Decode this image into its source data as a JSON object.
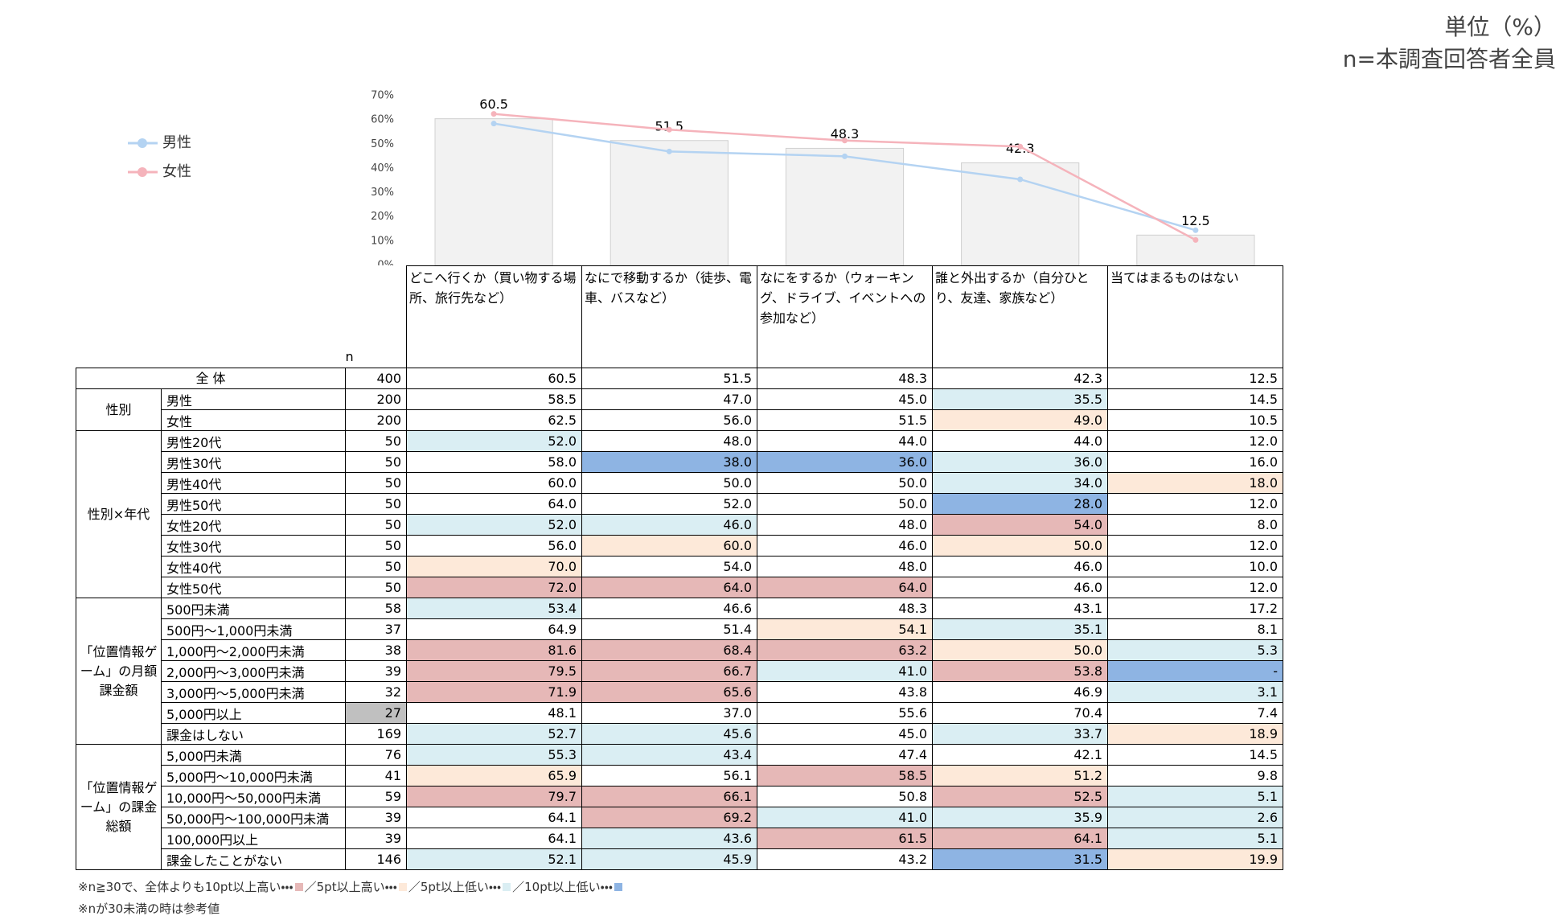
{
  "chart_data": {
    "type": "bar",
    "categories": [
      "どこへ行くか（買い物する場所、旅行先など）",
      "なにで移動するか（徒歩、電車、バスなど）",
      "なにをするか（ウォーキング、ドライブ、イベントへの参加など）",
      "誰と外出するか（自分ひとり、友達、家族など）",
      "当てはまるものはない"
    ],
    "values": [
      60.5,
      51.5,
      48.3,
      42.3,
      12.5
    ],
    "color": "#f2f2f2",
    "series": [
      {
        "name": "男性",
        "color": "#b4d3f2",
        "values": [
          58.5,
          47.0,
          45.0,
          35.5,
          14.5
        ]
      },
      {
        "name": "女性",
        "color": "#f5b3bb",
        "values": [
          62.5,
          56.0,
          51.5,
          49.0,
          10.5
        ]
      }
    ],
    "ylim": [
      0,
      70
    ],
    "yticks": [
      {
        "value": 0,
        "label": "0%"
      },
      {
        "value": 10,
        "label": "10%"
      },
      {
        "value": 20,
        "label": "20%"
      },
      {
        "value": 30,
        "label": "30%"
      },
      {
        "value": 40,
        "label": "40%"
      },
      {
        "value": 50,
        "label": "50%"
      },
      {
        "value": 60,
        "label": "60%"
      },
      {
        "value": 70,
        "label": "70%"
      }
    ],
    "grid": false,
    "legend": "left"
  },
  "header": {
    "unit": "単位（%）",
    "base": "n=本調査回答者全員"
  },
  "table": {
    "n_header": "n",
    "total": {
      "label": "全 体",
      "n": "400",
      "values": [
        "60.5",
        "51.5",
        "48.3",
        "42.3",
        "12.5"
      ]
    },
    "groups": [
      {
        "label": "性別",
        "rows": [
          {
            "label": "男性",
            "n": "200",
            "values": [
              "58.5",
              "47.0",
              "45.0",
              "35.5",
              "14.5"
            ],
            "fills": [
              null,
              null,
              null,
              "#daeef3",
              null
            ]
          },
          {
            "label": "女性",
            "n": "200",
            "values": [
              "62.5",
              "56.0",
              "51.5",
              "49.0",
              "10.5"
            ],
            "fills": [
              null,
              null,
              null,
              "#fde9d9",
              null
            ]
          }
        ]
      },
      {
        "label": "性別×年代",
        "rows": [
          {
            "label": "男性20代",
            "n": "50",
            "values": [
              "52.0",
              "48.0",
              "44.0",
              "44.0",
              "12.0"
            ],
            "fills": [
              "#daeef3",
              null,
              null,
              null,
              null
            ]
          },
          {
            "label": "男性30代",
            "n": "50",
            "values": [
              "58.0",
              "38.0",
              "36.0",
              "36.0",
              "16.0"
            ],
            "fills": [
              null,
              "#8eb4e3",
              "#8eb4e3",
              "#daeef3",
              null
            ]
          },
          {
            "label": "男性40代",
            "n": "50",
            "values": [
              "60.0",
              "50.0",
              "50.0",
              "34.0",
              "18.0"
            ],
            "fills": [
              null,
              null,
              null,
              "#daeef3",
              "#fde9d9"
            ]
          },
          {
            "label": "男性50代",
            "n": "50",
            "values": [
              "64.0",
              "52.0",
              "50.0",
              "28.0",
              "12.0"
            ],
            "fills": [
              null,
              null,
              null,
              "#8eb4e3",
              null
            ]
          },
          {
            "label": "女性20代",
            "n": "50",
            "values": [
              "52.0",
              "46.0",
              "48.0",
              "54.0",
              "8.0"
            ],
            "fills": [
              "#daeef3",
              "#daeef3",
              null,
              "#e6b8b7",
              null
            ]
          },
          {
            "label": "女性30代",
            "n": "50",
            "values": [
              "56.0",
              "60.0",
              "46.0",
              "50.0",
              "12.0"
            ],
            "fills": [
              null,
              "#fde9d9",
              null,
              "#fde9d9",
              null
            ]
          },
          {
            "label": "女性40代",
            "n": "50",
            "values": [
              "70.0",
              "54.0",
              "48.0",
              "46.0",
              "10.0"
            ],
            "fills": [
              "#fde9d9",
              null,
              null,
              null,
              null
            ]
          },
          {
            "label": "女性50代",
            "n": "50",
            "values": [
              "72.0",
              "64.0",
              "64.0",
              "46.0",
              "12.0"
            ],
            "fills": [
              "#e6b8b7",
              "#e6b8b7",
              "#e6b8b7",
              null,
              null
            ]
          }
        ]
      },
      {
        "label": "「位置情報ゲーム」の月額課金額",
        "rows": [
          {
            "label": "500円未満",
            "n": "58",
            "values": [
              "53.4",
              "46.6",
              "48.3",
              "43.1",
              "17.2"
            ],
            "fills": [
              "#daeef3",
              null,
              null,
              null,
              null
            ]
          },
          {
            "label": "500円～1,000円未満",
            "n": "37",
            "values": [
              "64.9",
              "51.4",
              "54.1",
              "35.1",
              "8.1"
            ],
            "fills": [
              null,
              null,
              "#fde9d9",
              "#daeef3",
              null
            ]
          },
          {
            "label": "1,000円～2,000円未満",
            "n": "38",
            "values": [
              "81.6",
              "68.4",
              "63.2",
              "50.0",
              "5.3"
            ],
            "fills": [
              "#e6b8b7",
              "#e6b8b7",
              "#e6b8b7",
              "#fde9d9",
              "#daeef3"
            ]
          },
          {
            "label": "2,000円～3,000円未満",
            "n": "39",
            "values": [
              "79.5",
              "66.7",
              "41.0",
              "53.8",
              "-"
            ],
            "fills": [
              "#e6b8b7",
              "#e6b8b7",
              "#daeef3",
              "#e6b8b7",
              "#8eb4e3"
            ]
          },
          {
            "label": "3,000円～5,000円未満",
            "n": "32",
            "values": [
              "71.9",
              "65.6",
              "43.8",
              "46.9",
              "3.1"
            ],
            "fills": [
              "#e6b8b7",
              "#e6b8b7",
              null,
              null,
              "#daeef3"
            ]
          },
          {
            "label": "5,000円以上",
            "n": "27",
            "n_fill": "#c0c0c0",
            "values": [
              "48.1",
              "37.0",
              "55.6",
              "70.4",
              "7.4"
            ],
            "fills": [
              null,
              null,
              null,
              null,
              null
            ]
          },
          {
            "label": "課金はしない",
            "n": "169",
            "values": [
              "52.7",
              "45.6",
              "45.0",
              "33.7",
              "18.9"
            ],
            "fills": [
              "#daeef3",
              "#daeef3",
              null,
              "#daeef3",
              "#fde9d9"
            ]
          }
        ]
      },
      {
        "label": "「位置情報ゲーム」の課金総額",
        "rows": [
          {
            "label": "5,000円未満",
            "n": "76",
            "values": [
              "55.3",
              "43.4",
              "47.4",
              "42.1",
              "14.5"
            ],
            "fills": [
              "#daeef3",
              "#daeef3",
              null,
              null,
              null
            ]
          },
          {
            "label": "5,000円～10,000円未満",
            "n": "41",
            "values": [
              "65.9",
              "56.1",
              "58.5",
              "51.2",
              "9.8"
            ],
            "fills": [
              "#fde9d9",
              null,
              "#e6b8b7",
              "#fde9d9",
              null
            ]
          },
          {
            "label": "10,000円～50,000円未満",
            "n": "59",
            "values": [
              "79.7",
              "66.1",
              "50.8",
              "52.5",
              "5.1"
            ],
            "fills": [
              "#e6b8b7",
              "#e6b8b7",
              null,
              "#e6b8b7",
              "#daeef3"
            ]
          },
          {
            "label": "50,000円～100,000円未満",
            "n": "39",
            "values": [
              "64.1",
              "69.2",
              "41.0",
              "35.9",
              "2.6"
            ],
            "fills": [
              null,
              "#e6b8b7",
              "#daeef3",
              "#daeef3",
              "#daeef3"
            ]
          },
          {
            "label": "100,000円以上",
            "n": "39",
            "values": [
              "64.1",
              "43.6",
              "61.5",
              "64.1",
              "5.1"
            ],
            "fills": [
              null,
              "#daeef3",
              "#e6b8b7",
              "#e6b8b7",
              "#daeef3"
            ]
          },
          {
            "label": "課金したことがない",
            "n": "146",
            "values": [
              "52.1",
              "45.9",
              "43.2",
              "31.5",
              "19.9"
            ],
            "fills": [
              "#daeef3",
              "#daeef3",
              null,
              "#8eb4e3",
              "#fde9d9"
            ]
          }
        ]
      }
    ]
  },
  "footnote": {
    "prefix": "※n≧30で、全体よりも",
    "items": [
      {
        "text": "10pt以上高い・・・",
        "color": "#e6b8b7"
      },
      {
        "text": "／5pt以上高い・・・",
        "color": "#fde9d9"
      },
      {
        "text": "／5pt以上低い・・・",
        "color": "#daeef3"
      },
      {
        "text": "／10pt以上低い・・・",
        "color": "#8eb4e3"
      }
    ],
    "note": "※nが30未満の時は参考値"
  }
}
